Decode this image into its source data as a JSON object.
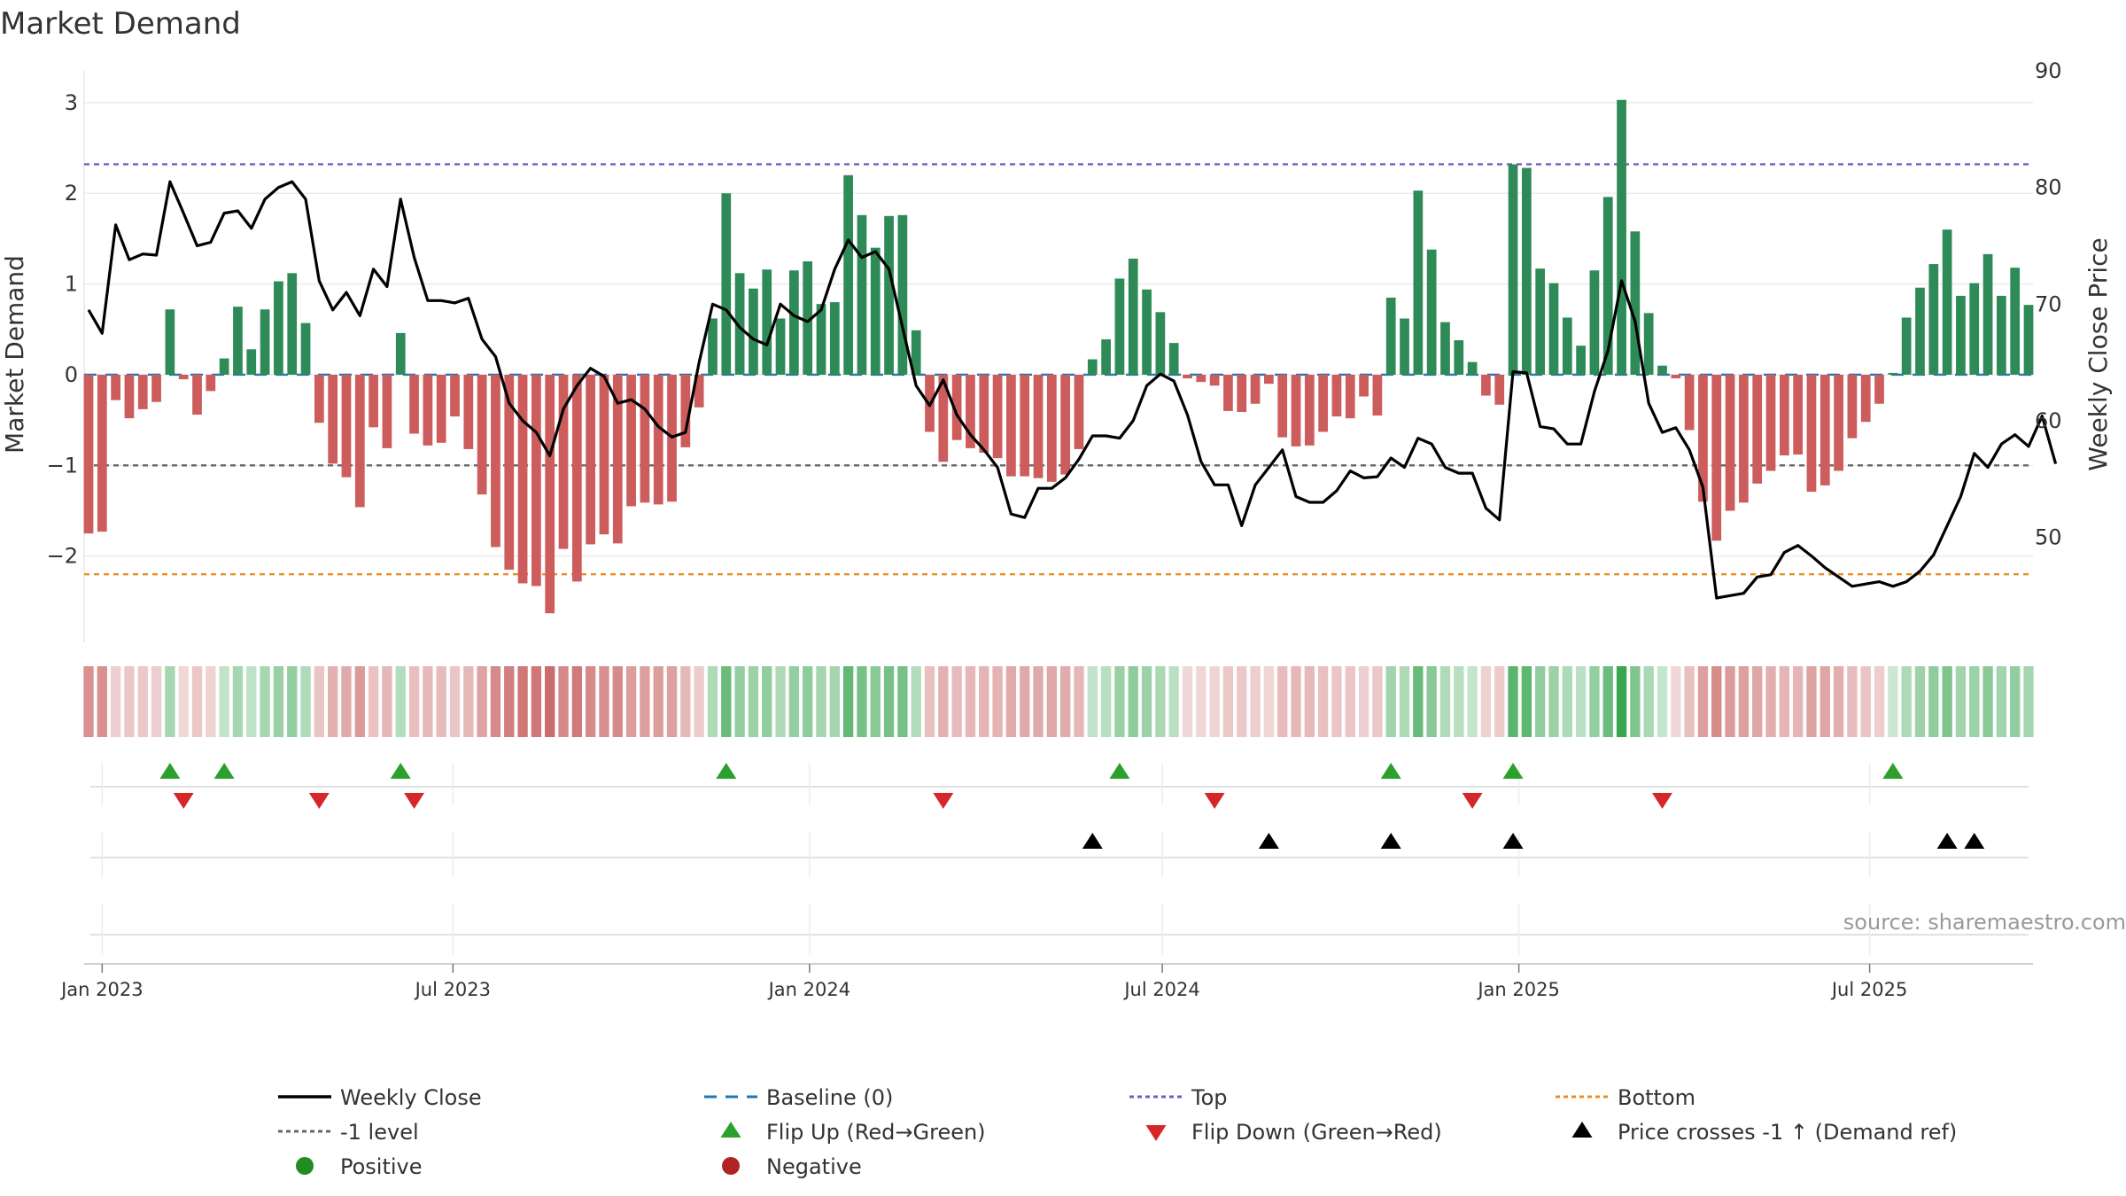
{
  "chart_data": {
    "type": "bar",
    "title": "Market Demand",
    "ylabel": "Market Demand",
    "y2label": "Weekly Close Price",
    "ylim": [
      -2.95,
      3.35
    ],
    "y2lim": [
      41.0,
      90.0
    ],
    "yticks": [
      3,
      2,
      1,
      0,
      -1,
      -2
    ],
    "yticklabels": [
      "3",
      "2",
      "1",
      "0",
      "−1",
      "−2"
    ],
    "y2ticks": [
      90,
      80,
      70,
      60,
      50
    ],
    "y2ticklabels": [
      "90",
      "80",
      "70",
      "60",
      "50"
    ],
    "x_axis": {
      "start": "2022-12-25",
      "end": "2025-09-07",
      "tick_dates": [
        "2023-01-01",
        "2023-07-01",
        "2024-01-01",
        "2024-07-01",
        "2025-01-01",
        "2025-07-01"
      ],
      "tick_labels": [
        "Jan 2023",
        "Jul 2023",
        "Jan 2024",
        "Jul 2024",
        "Jan 2025",
        "Jul 2025"
      ]
    },
    "weeks_start": "2022-12-25",
    "demand": [
      -1.75,
      -1.73,
      -0.28,
      -0.48,
      -0.38,
      -0.3,
      0.72,
      -0.05,
      -0.44,
      -0.18,
      0.18,
      0.75,
      0.28,
      0.72,
      1.03,
      1.12,
      0.57,
      -0.53,
      -0.98,
      -1.13,
      -1.46,
      -0.58,
      -0.81,
      0.46,
      -0.65,
      -0.78,
      -0.75,
      -0.46,
      -0.82,
      -1.32,
      -1.9,
      -2.15,
      -2.3,
      -2.33,
      -2.63,
      -1.92,
      -2.28,
      -1.87,
      -1.76,
      -1.86,
      -1.45,
      -1.41,
      -1.43,
      -1.4,
      -0.8,
      -0.36,
      0.62,
      2.0,
      1.12,
      0.95,
      1.16,
      0.62,
      1.15,
      1.25,
      0.78,
      0.8,
      2.2,
      1.76,
      1.4,
      1.75,
      1.76,
      0.49,
      -0.63,
      -0.96,
      -0.72,
      -0.81,
      -0.86,
      -0.92,
      -1.12,
      -1.12,
      -1.14,
      -1.18,
      -1.1,
      -0.82,
      0.17,
      0.39,
      1.06,
      1.28,
      0.94,
      0.69,
      0.35,
      -0.04,
      -0.08,
      -0.12,
      -0.4,
      -0.41,
      -0.32,
      -0.1,
      -0.69,
      -0.79,
      -0.78,
      -0.63,
      -0.46,
      -0.48,
      -0.24,
      -0.45,
      0.85,
      0.62,
      2.03,
      1.38,
      0.58,
      0.38,
      0.14,
      -0.23,
      -0.33,
      2.32,
      2.28,
      1.17,
      1.01,
      0.63,
      0.32,
      1.15,
      1.96,
      3.03,
      1.58,
      0.68,
      0.1,
      -0.04,
      -0.61,
      -1.4,
      -1.83,
      -1.5,
      -1.41,
      -1.2,
      -1.06,
      -0.89,
      -0.88,
      -1.29,
      -1.22,
      -1.06,
      -0.7,
      -0.52,
      -0.32,
      0.02,
      0.63,
      0.96,
      1.22,
      1.6,
      0.87,
      1.01,
      1.33,
      0.87,
      1.18,
      0.77
    ],
    "price": [
      69.5,
      67.5,
      76.8,
      73.8,
      74.3,
      74.2,
      80.5,
      77.8,
      75.0,
      75.3,
      77.8,
      78.0,
      76.5,
      79.0,
      80.0,
      80.5,
      79.0,
      72.0,
      69.5,
      71.0,
      69.0,
      73.0,
      71.5,
      79.0,
      74.0,
      70.3,
      70.3,
      70.1,
      70.5,
      67.0,
      65.5,
      61.5,
      60.0,
      59.0,
      57.0,
      61.0,
      63.0,
      64.5,
      63.8,
      61.5,
      61.8,
      61.0,
      59.5,
      58.6,
      59.0,
      65.0,
      70.0,
      69.5,
      68.0,
      67.0,
      66.5,
      70.0,
      69.0,
      68.5,
      69.5,
      73.0,
      75.5,
      74.0,
      74.5,
      73.0,
      68.0,
      63.0,
      61.3,
      63.5,
      60.5,
      58.8,
      57.5,
      56.0,
      52.0,
      51.7,
      54.2,
      54.2,
      55.1,
      56.7,
      58.7,
      58.7,
      58.5,
      60.0,
      63.0,
      64.0,
      63.4,
      60.5,
      56.5,
      54.5,
      54.5,
      51.0,
      54.5,
      56.0,
      57.5,
      53.5,
      53.0,
      53.0,
      54.0,
      55.7,
      55.1,
      55.2,
      56.8,
      56.0,
      58.5,
      58.0,
      56.0,
      55.5,
      55.5,
      52.5,
      51.5,
      64.2,
      64.1,
      59.5,
      59.3,
      58.0,
      58.0,
      62.5,
      66.0,
      72.0,
      68.5,
      61.5,
      59.0,
      59.4,
      57.5,
      54.3,
      44.8,
      45.0,
      45.2,
      46.6,
      46.8,
      48.7,
      49.3,
      48.4,
      47.4,
      46.6,
      45.8,
      46.0,
      46.2,
      45.8,
      46.2,
      47.1,
      48.5,
      51.0,
      53.5,
      57.2,
      56.0,
      58.0,
      58.8,
      57.8,
      60.4,
      56.3
    ],
    "levels": [
      {
        "name": "Top",
        "value": 2.32,
        "color": "#6d63c4"
      },
      {
        "name": "Bottom",
        "value": -2.2,
        "color": "#e8912b"
      },
      {
        "name": "-1 level",
        "value": -1.0,
        "color": "#666666"
      },
      {
        "name": "Baseline (0)",
        "value": 0.0,
        "color": "#1f77b4"
      }
    ],
    "flip_up_weeks": [
      6,
      10,
      23,
      47,
      76,
      96,
      105,
      133
    ],
    "flip_down_weeks": [
      7,
      17,
      24,
      63,
      83,
      102,
      116
    ],
    "price_cross_weeks": [
      74,
      87,
      96,
      105,
      137,
      139
    ],
    "colors": {
      "positive_bar": "#2e8b57",
      "negative_bar": "#cd5c5c",
      "price_line": "#000000",
      "flip_up": "#2ca02c",
      "flip_down": "#d62728",
      "price_cross": "#000000",
      "positive_dot": "#228b22",
      "negative_dot": "#b22222"
    },
    "source": "source: sharemaestro.com",
    "legend": [
      {
        "key": "Weekly Close",
        "kind": "line",
        "color": "#000000"
      },
      {
        "key": "Baseline (0)",
        "kind": "dash",
        "color": "#1f77b4"
      },
      {
        "key": "Top",
        "kind": "dot",
        "color": "#6d63c4"
      },
      {
        "key": "Bottom",
        "kind": "dot",
        "color": "#e8912b"
      },
      {
        "key": "-1 level",
        "kind": "dot",
        "color": "#666666"
      },
      {
        "key": "Flip Up (Red→Green)",
        "kind": "tri-up",
        "color": "#2ca02c"
      },
      {
        "key": "Flip Down (Green→Red)",
        "kind": "tri-down",
        "color": "#d62728"
      },
      {
        "key": "Price crosses -1 ↑ (Demand ref)",
        "kind": "tri-up",
        "color": "#000000"
      },
      {
        "key": "Positive",
        "kind": "circle",
        "color": "#228b22"
      },
      {
        "key": "Negative",
        "kind": "circle",
        "color": "#b22222"
      }
    ]
  }
}
